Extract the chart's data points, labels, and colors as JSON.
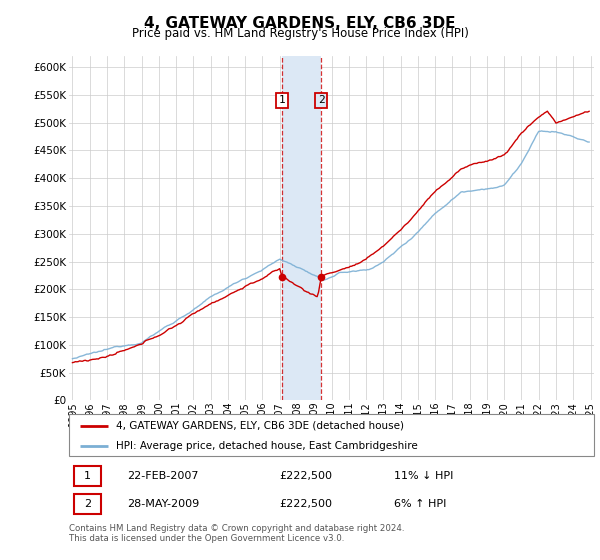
{
  "title": "4, GATEWAY GARDENS, ELY, CB6 3DE",
  "subtitle": "Price paid vs. HM Land Registry's House Price Index (HPI)",
  "hpi_label": "HPI: Average price, detached house, East Cambridgeshire",
  "property_label": "4, GATEWAY GARDENS, ELY, CB6 3DE (detached house)",
  "red_color": "#cc0000",
  "blue_color": "#7bafd4",
  "shaded_color": "#dce8f5",
  "annotation1_date": "22-FEB-2007",
  "annotation1_price": "£222,500",
  "annotation1_hpi": "11% ↓ HPI",
  "annotation2_date": "28-MAY-2009",
  "annotation2_price": "£222,500",
  "annotation2_hpi": "6% ↑ HPI",
  "footer": "Contains HM Land Registry data © Crown copyright and database right 2024.\nThis data is licensed under the Open Government Licence v3.0.",
  "ylim": [
    0,
    620000
  ],
  "yticks": [
    0,
    50000,
    100000,
    150000,
    200000,
    250000,
    300000,
    350000,
    400000,
    450000,
    500000,
    550000,
    600000
  ],
  "xstart_year": 1995,
  "xend_year": 2025,
  "t1_year": 2007.135,
  "t2_year": 2009.405,
  "t1_price": 222500,
  "t2_price": 222500
}
